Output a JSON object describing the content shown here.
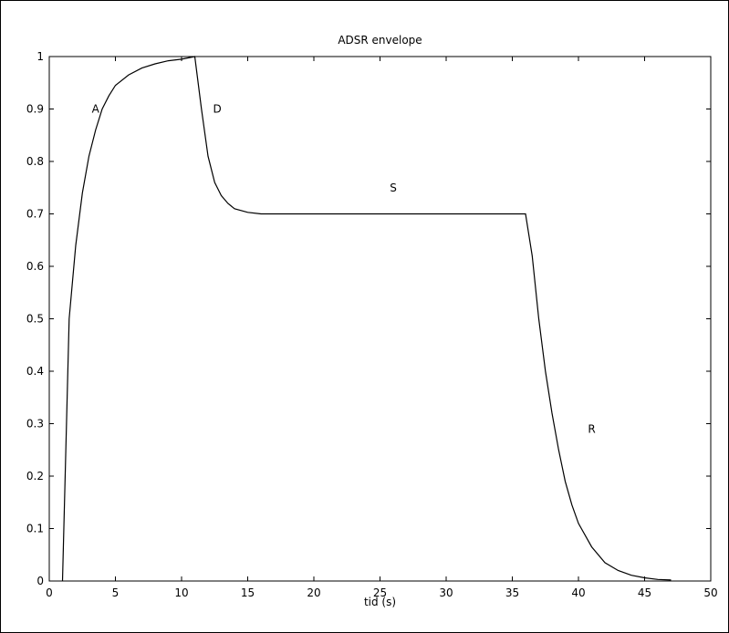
{
  "chart_data": {
    "type": "line",
    "title": "ADSR envelope",
    "xlabel": "tid (s)",
    "ylabel": "",
    "xlim": [
      0,
      50
    ],
    "ylim": [
      0,
      1
    ],
    "xticks": [
      0,
      5,
      10,
      15,
      20,
      25,
      30,
      35,
      40,
      45,
      50
    ],
    "yticks": [
      0,
      0.1,
      0.2,
      0.3,
      0.4,
      0.5,
      0.6,
      0.7,
      0.8,
      0.9,
      1
    ],
    "ytick_labels": [
      "0",
      "0.1",
      "0.2",
      "0.3",
      "0.4",
      "0.5",
      "0.6",
      "0.7",
      "0.8",
      "0.9",
      "1"
    ],
    "grid": false,
    "series": [
      {
        "color": "#000000",
        "x": [
          1.0,
          1.5,
          2.0,
          2.5,
          3.0,
          3.5,
          4.0,
          4.5,
          5.0,
          6.0,
          7.0,
          8.0,
          9.0,
          10.0,
          11.0,
          11.5,
          12.0,
          12.5,
          13.0,
          13.5,
          14.0,
          15.0,
          16.0,
          20.0,
          25.0,
          30.0,
          36.0,
          36.5,
          37.0,
          37.5,
          38.0,
          38.5,
          39.0,
          39.5,
          40.0,
          41.0,
          42.0,
          43.0,
          44.0,
          45.0,
          46.0,
          47.0
        ],
        "y": [
          0.0,
          0.5,
          0.64,
          0.74,
          0.81,
          0.86,
          0.9,
          0.925,
          0.945,
          0.965,
          0.978,
          0.986,
          0.992,
          0.995,
          1.0,
          0.9,
          0.81,
          0.76,
          0.735,
          0.72,
          0.71,
          0.703,
          0.7,
          0.7,
          0.7,
          0.7,
          0.7,
          0.62,
          0.5,
          0.4,
          0.32,
          0.25,
          0.19,
          0.145,
          0.11,
          0.065,
          0.035,
          0.02,
          0.011,
          0.006,
          0.003,
          0.002
        ]
      }
    ],
    "annotations": [
      {
        "text": "A",
        "x": 3.5,
        "y": 0.9
      },
      {
        "text": "D",
        "x": 12.7,
        "y": 0.9
      },
      {
        "text": "S",
        "x": 26.0,
        "y": 0.75
      },
      {
        "text": "R",
        "x": 41.0,
        "y": 0.29
      }
    ]
  }
}
